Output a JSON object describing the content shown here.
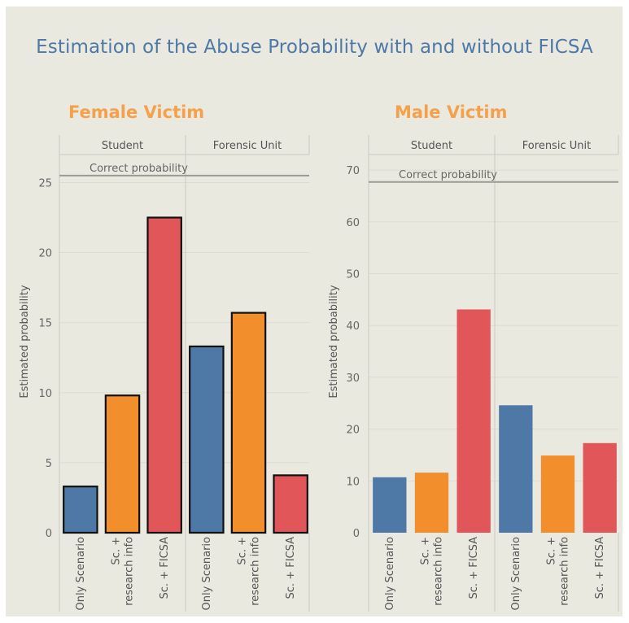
{
  "title": "Estimation of the Abuse Probability with and without FICSA",
  "colors": {
    "blue": "#4e79a7",
    "orange": "#f28e2b",
    "red": "#e15759",
    "subtitle": "#f5a14c",
    "reference": "#9a9a96"
  },
  "chart_data": [
    {
      "type": "bar",
      "title": "Female Victim",
      "ylabel": "Estimated probability",
      "ylim": [
        0,
        27
      ],
      "yticks": [
        0,
        5,
        10,
        15,
        20,
        25
      ],
      "groups": [
        "Student",
        "Forensic Unit"
      ],
      "categories": [
        "Only Scenario",
        "Sc. + research info",
        "Sc. + FICSA"
      ],
      "values": [
        [
          3.3,
          9.8,
          22.5
        ],
        [
          13.3,
          15.7,
          4.1
        ]
      ],
      "reference": {
        "label": "Correct probability",
        "value": 25.5
      },
      "outlined": true
    },
    {
      "type": "bar",
      "title": "Male Victim",
      "ylabel": "Estimated probability",
      "ylim": [
        0,
        73
      ],
      "yticks": [
        0,
        10,
        20,
        30,
        40,
        50,
        60,
        70
      ],
      "groups": [
        "Student",
        "Forensic Unit"
      ],
      "categories": [
        "Only Scenario",
        "Sc. + research info",
        "Sc. + FICSA"
      ],
      "values": [
        [
          10.7,
          11.6,
          43.1
        ],
        [
          24.6,
          14.9,
          17.3
        ]
      ],
      "reference": {
        "label": "Correct probability",
        "value": 67.7
      },
      "outlined": false
    }
  ]
}
